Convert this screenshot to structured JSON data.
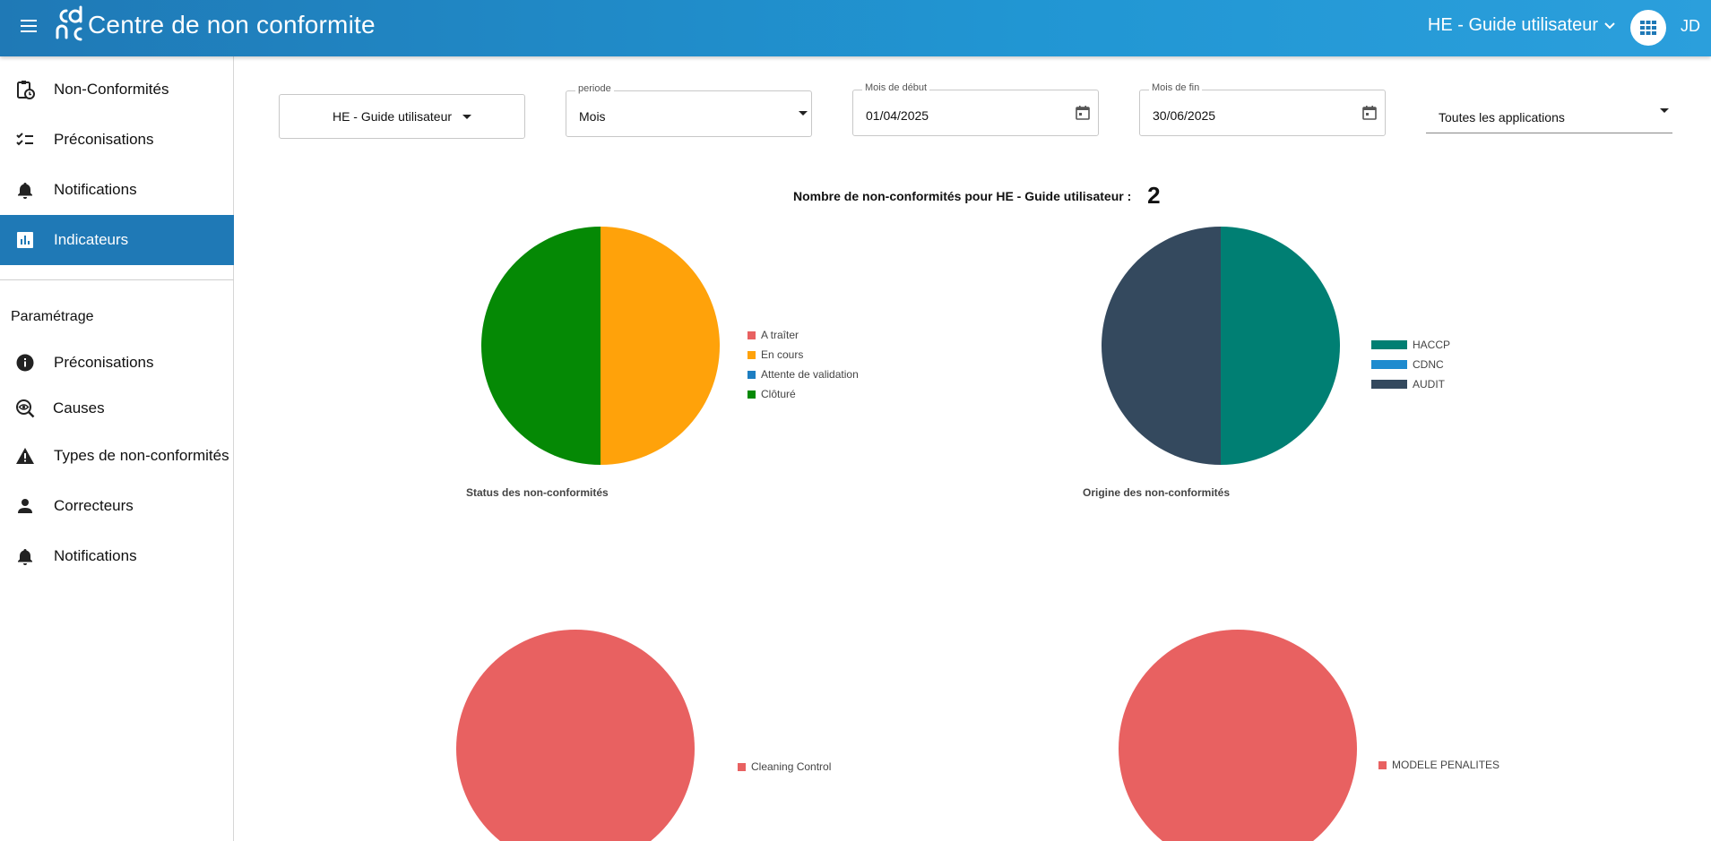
{
  "header": {
    "app_title": "Centre de non conformite",
    "site_select": "HE - Guide utilisateur",
    "user_initials": "JD"
  },
  "sidebar": {
    "items": [
      {
        "label": "Non-Conformités",
        "icon": "clipboard-clock-icon",
        "active": false
      },
      {
        "label": "Préconisations",
        "icon": "checklist-icon",
        "active": false
      },
      {
        "label": "Notifications",
        "icon": "bell-icon",
        "active": false
      },
      {
        "label": "Indicateurs",
        "icon": "chart-box-icon",
        "active": true
      }
    ],
    "settings_title": "Paramétrage",
    "settings_items": [
      {
        "label": "Préconisations",
        "icon": "info-circle-icon"
      },
      {
        "label": "Causes",
        "icon": "eye-search-icon"
      },
      {
        "label": "Types de non-conformités",
        "icon": "warning-icon"
      },
      {
        "label": "Correcteurs",
        "icon": "person-icon"
      },
      {
        "label": "Notifications",
        "icon": "bell-icon"
      }
    ]
  },
  "filters": {
    "site_button": "HE - Guide utilisateur",
    "periode": {
      "label": "periode",
      "value": "Mois"
    },
    "start_month": {
      "label": "Mois de début",
      "value": "01/04/2025"
    },
    "end_month": {
      "label": "Mois de fin",
      "value": "30/06/2025"
    },
    "applications": {
      "value": "Toutes les applications"
    }
  },
  "summary": {
    "label": "Nombre de non-conformités pour HE - Guide utilisateur :",
    "count": "2"
  },
  "colors": {
    "accent": "#1f79b6",
    "red": "#e86161",
    "orange": "#ffa20a",
    "blue": "#1d7ec2",
    "green": "#058905",
    "teal": "#007f73",
    "light_blue": "#1e8bcf",
    "slate": "#34495e"
  },
  "chart_data": [
    {
      "type": "pie",
      "title": "Status des non-conformités",
      "categories": [
        "A traîter",
        "En cours",
        "Attente de validation",
        "Clôturé"
      ],
      "values": [
        0,
        1,
        0,
        1
      ],
      "colors": [
        "#e86161",
        "#ffa20a",
        "#1d7ec2",
        "#058905"
      ],
      "legend": "right"
    },
    {
      "type": "pie",
      "title": "Origine des non-conformités",
      "categories": [
        "HACCP",
        "CDNC",
        "AUDIT"
      ],
      "values": [
        1,
        0,
        1
      ],
      "colors": [
        "#007f73",
        "#1e8bcf",
        "#34495e"
      ],
      "legend": "right"
    },
    {
      "type": "pie",
      "title": "",
      "categories": [
        "Cleaning Control"
      ],
      "values": [
        1
      ],
      "colors": [
        "#e86161"
      ],
      "legend": "right"
    },
    {
      "type": "pie",
      "title": "",
      "categories": [
        "MODELE PENALITES"
      ],
      "values": [
        1
      ],
      "colors": [
        "#e86161"
      ],
      "legend": "right"
    }
  ]
}
